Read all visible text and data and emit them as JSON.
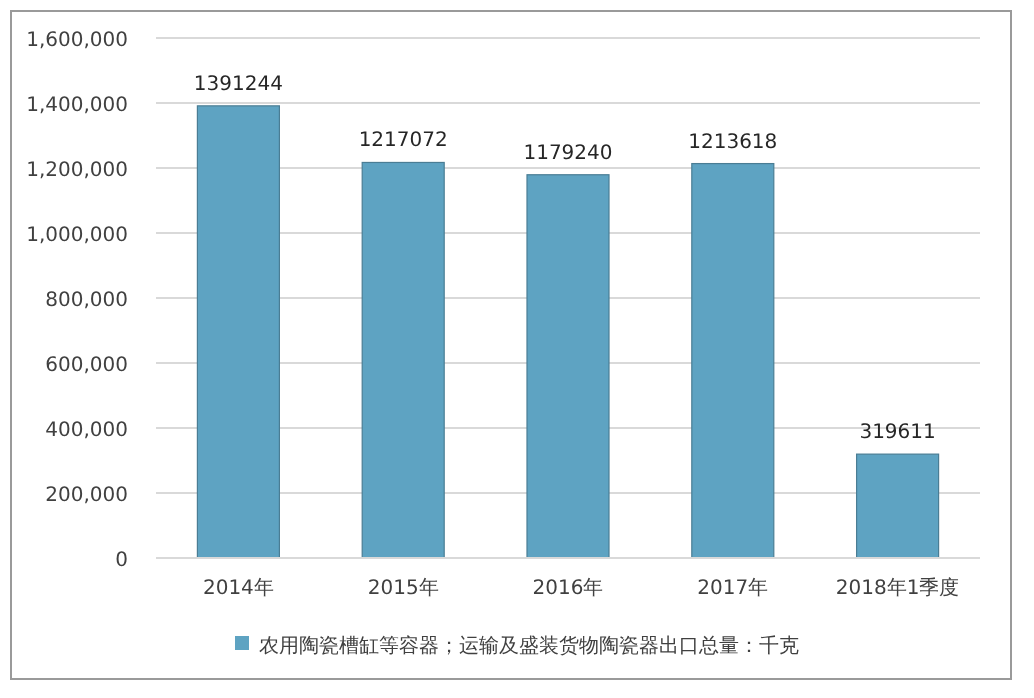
{
  "chart_data": {
    "type": "bar",
    "categories": [
      "2014年",
      "2015年",
      "2016年",
      "2017年",
      "2018年1季度"
    ],
    "series": [
      {
        "name": "农用陶瓷槽缸等容器；运输及盛装货物陶瓷器出口总量：千克",
        "color": "#5ea3c2",
        "values": [
          1391244,
          1217072,
          1179240,
          1213618,
          319611
        ]
      }
    ],
    "ylim": [
      0,
      1600000
    ],
    "yticks": [
      0,
      {
        "value": 200000,
        "label": "200,000"
      },
      {
        "value": 400000,
        "label": "400,000"
      },
      {
        "value": 600000,
        "label": "600,000"
      },
      {
        "value": 800000,
        "label": "800,000"
      },
      {
        "value": 1000000,
        "label": "1,000,000"
      },
      {
        "value": 1200000,
        "label": "1,200,000"
      },
      {
        "value": 1400000,
        "label": "1,400,000"
      },
      {
        "value": 1600000,
        "label": "1,600,000"
      }
    ],
    "grid": "y",
    "data_labels": true,
    "legend": "bottom"
  }
}
